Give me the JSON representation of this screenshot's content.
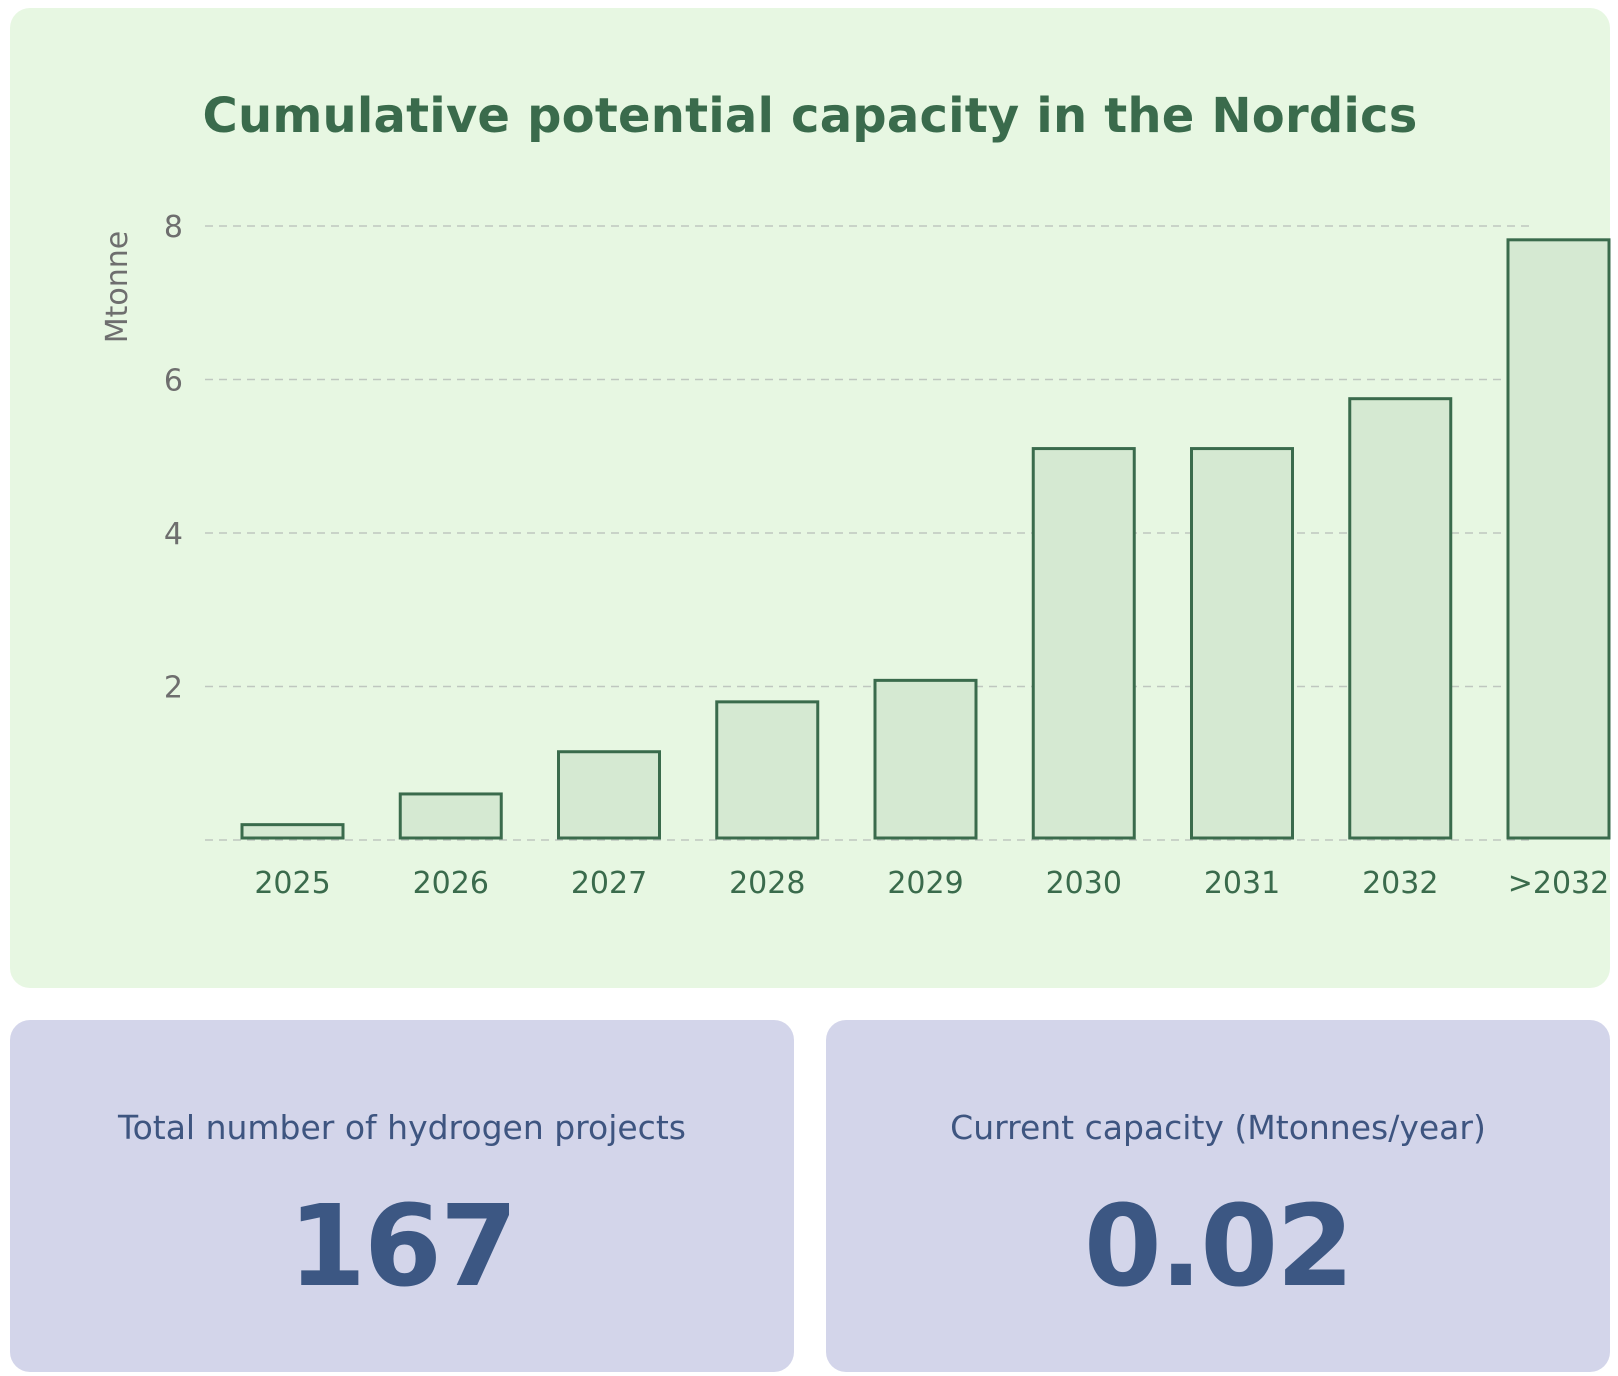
{
  "chart_data": {
    "type": "bar",
    "title": "Cumulative potential capacity in the Nordics",
    "xlabel": "",
    "ylabel": "Mtonne",
    "categories": [
      "2025",
      "2026",
      "2027",
      "2028",
      "2029",
      "2030",
      "2031",
      "2032",
      ">2032"
    ],
    "values": [
      0.2,
      0.6,
      1.15,
      1.8,
      2.08,
      5.1,
      5.1,
      5.75,
      7.82
    ],
    "ylim": [
      0,
      8
    ],
    "yticks": [
      2,
      4,
      6,
      8
    ],
    "grid": true,
    "colors": {
      "bar_fill": "#d5e9d2",
      "bar_stroke": "#3a6b4c",
      "tick_label": "#6e6e6e",
      "category_label": "#3a6b4c",
      "grid": "#bfc7bf"
    }
  },
  "stats": {
    "projects": {
      "label": "Total number of hydrogen projects",
      "value": "167"
    },
    "capacity": {
      "label": "Current capacity (Mtonnes/year)",
      "value": "0.02"
    }
  },
  "colors": {
    "chart_background": "#e7f7e2",
    "stat_background": "#d3d5ea",
    "stat_text": "#3c5783"
  }
}
